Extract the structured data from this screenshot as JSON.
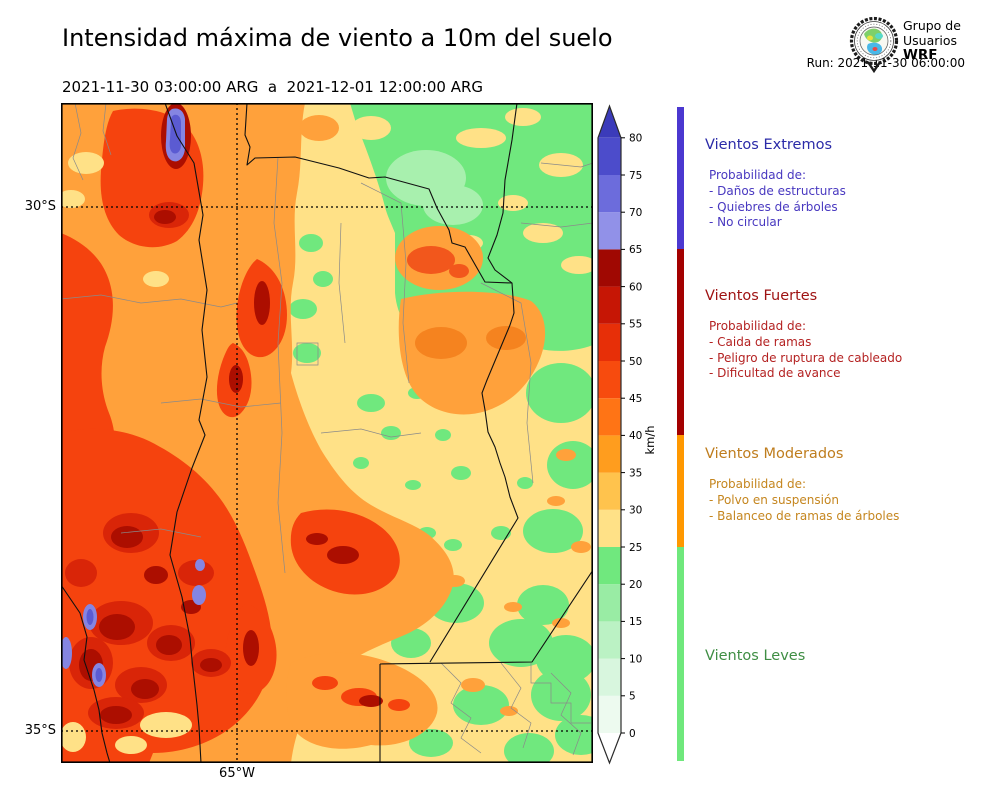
{
  "header": {
    "title": "Intensidad máxima de viento a 10m del suelo",
    "subtitle": "2021-11-30 03:00:00 ARG  a  2021-12-01 12:00:00 ARG",
    "run_label": "Run: 2021-11-30 06:00:00",
    "logo": {
      "line1": "Grupo de",
      "line2": "Usuarios",
      "line3": "WRF"
    }
  },
  "map": {
    "axis": {
      "lat_top": "30°S",
      "lat_bottom": "35°S",
      "lon": "65°W"
    }
  },
  "chart_data": {
    "type": "heatmap",
    "title": "Intensidad máxima de viento a 10m del suelo",
    "time_range": [
      "2021-11-30 03:00:00 ARG",
      "2021-12-01 12:00:00 ARG"
    ],
    "model_run": "2021-11-30 06:00:00",
    "unit": "km/h",
    "gridlines": {
      "lat": [
        "30°S",
        "35°S"
      ],
      "lon": [
        "65°W"
      ]
    },
    "colorbar": {
      "unit": "km/h",
      "ticks": [
        0,
        5,
        10,
        15,
        20,
        25,
        30,
        35,
        40,
        45,
        50,
        55,
        60,
        65,
        70,
        75,
        80
      ],
      "over_color": "#3B3BBA",
      "under_color": "#FFFFFF",
      "levels": [
        {
          "from": 0,
          "to": 5,
          "color": "#EDFAEF"
        },
        {
          "from": 5,
          "to": 10,
          "color": "#D8F6DE"
        },
        {
          "from": 10,
          "to": 15,
          "color": "#BBF2C4"
        },
        {
          "from": 15,
          "to": 20,
          "color": "#99ECA4"
        },
        {
          "from": 20,
          "to": 25,
          "color": "#70E87E"
        },
        {
          "from": 25,
          "to": 30,
          "color": "#FFE187"
        },
        {
          "from": 30,
          "to": 35,
          "color": "#FFC34D"
        },
        {
          "from": 35,
          "to": 40,
          "color": "#FF9D1E"
        },
        {
          "from": 40,
          "to": 45,
          "color": "#FF7415"
        },
        {
          "from": 45,
          "to": 50,
          "color": "#F74B0E"
        },
        {
          "from": 50,
          "to": 55,
          "color": "#E72F08"
        },
        {
          "from": 55,
          "to": 60,
          "color": "#C61605"
        },
        {
          "from": 60,
          "to": 65,
          "color": "#A00802"
        },
        {
          "from": 65,
          "to": 70,
          "color": "#9191E8"
        },
        {
          "from": 70,
          "to": 75,
          "color": "#6C6CDC"
        },
        {
          "from": 75,
          "to": 80,
          "color": "#4C4CCB"
        }
      ]
    },
    "categories": [
      {
        "name": "Vientos Extremos",
        "min_kmh": 65,
        "max_kmh": null,
        "bar_color": "#4B38D0"
      },
      {
        "name": "Vientos Fuertes",
        "min_kmh": 40,
        "max_kmh": 65,
        "bar_color": "#A30000"
      },
      {
        "name": "Vientos Moderados",
        "min_kmh": 25,
        "max_kmh": 40,
        "bar_color": "#FF9800"
      },
      {
        "name": "Vientos Leves",
        "min_kmh": 0,
        "max_kmh": 25,
        "bar_color": "#6FE87C"
      }
    ]
  },
  "legend": {
    "sections": [
      {
        "title": "Vientos Extremos",
        "title_color": "#2B2BA8",
        "text_color": "#4838C0",
        "intro": "Probabilidad de:",
        "items": [
          "- Daños de estructuras",
          "- Quiebres de árboles",
          "- No circular"
        ]
      },
      {
        "title": "Vientos Fuertes",
        "title_color": "#9E1212",
        "text_color": "#B42222",
        "intro": "Probabilidad de:",
        "items": [
          "- Caida de ramas",
          "- Peligro de ruptura de cableado",
          "- Dificultad de avance"
        ]
      },
      {
        "title": "Vientos Moderados",
        "title_color": "#BF7D1E",
        "text_color": "#C5861F",
        "intro": "Probabilidad de:",
        "items": [
          "- Polvo en suspensión",
          "- Balanceo de ramas de árboles"
        ]
      },
      {
        "title": "Vientos Leves",
        "title_color": "#3F8E44",
        "text_color": "#3F8E44",
        "intro": "",
        "items": []
      }
    ]
  }
}
